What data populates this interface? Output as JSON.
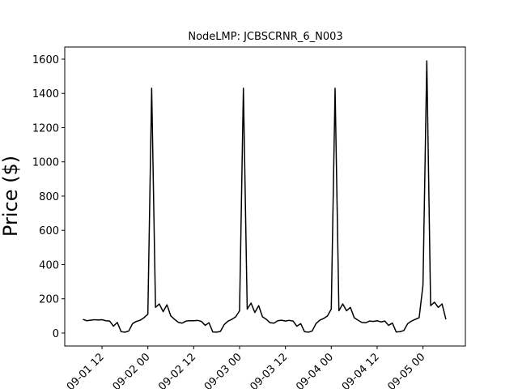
{
  "chart_data": {
    "type": "line",
    "title": "NodeLMP: JCBSCRNR_6_N003",
    "y_label": "Price ($)",
    "x": [
      7,
      8,
      9,
      10,
      11,
      12,
      13,
      14,
      15,
      16,
      17,
      18,
      19,
      20,
      21,
      22,
      23,
      24,
      25,
      26,
      27,
      28,
      29,
      30,
      31,
      32,
      33,
      34,
      35,
      36,
      37,
      38,
      39,
      40,
      41,
      42,
      43,
      44,
      45,
      46,
      47,
      48,
      49,
      50,
      51,
      52,
      53,
      54,
      55,
      56,
      57,
      58,
      59,
      60,
      61,
      62,
      63,
      64,
      65,
      66,
      67,
      68,
      69,
      70,
      71,
      72,
      73,
      74,
      75,
      76,
      77,
      78,
      79,
      80,
      81,
      82,
      83,
      84,
      85,
      86,
      87,
      88,
      89,
      90,
      91,
      92,
      93,
      94,
      95,
      96,
      97,
      98,
      99,
      100,
      101,
      102
    ],
    "series": [
      {
        "name": "JCBSCRNR_6_N003",
        "color": "#000000",
        "values": [
          80,
          72,
          75,
          78,
          76,
          78,
          72,
          70,
          40,
          62,
          8,
          5,
          12,
          55,
          68,
          75,
          90,
          110,
          1430,
          150,
          170,
          125,
          165,
          100,
          80,
          62,
          58,
          70,
          72,
          72,
          74,
          68,
          45,
          60,
          6,
          5,
          10,
          50,
          70,
          80,
          95,
          130,
          1430,
          140,
          175,
          120,
          160,
          95,
          80,
          60,
          58,
          72,
          75,
          70,
          74,
          70,
          40,
          55,
          8,
          5,
          12,
          55,
          75,
          85,
          100,
          140,
          1430,
          130,
          170,
          130,
          150,
          90,
          75,
          62,
          60,
          70,
          68,
          72,
          65,
          70,
          45,
          58,
          6,
          8,
          15,
          55,
          70,
          80,
          90,
          280,
          1590,
          160,
          180,
          150,
          170,
          80
        ]
      }
    ],
    "xlim": [
      2.25,
      107.1
    ],
    "xticks": [
      {
        "value": 12,
        "label": "09-01 12"
      },
      {
        "value": 24,
        "label": "09-02 00"
      },
      {
        "value": 36,
        "label": "09-02 12"
      },
      {
        "value": 48,
        "label": "09-03 00"
      },
      {
        "value": 60,
        "label": "09-03 12"
      },
      {
        "value": 72,
        "label": "09-04 00"
      },
      {
        "value": 84,
        "label": "09-04 12"
      },
      {
        "value": 96,
        "label": "09-05 00"
      }
    ],
    "ylim": [
      -76,
      1671
    ],
    "yticks": [
      0,
      200,
      400,
      600,
      800,
      1000,
      1200,
      1400,
      1600
    ],
    "grid": false
  }
}
